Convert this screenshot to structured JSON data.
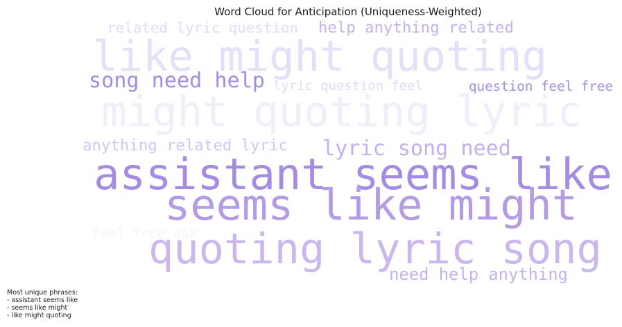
{
  "chart_data": {
    "type": "wordcloud",
    "title": "Word Cloud for Anticipation (Uniqueness-Weighted)",
    "words": [
      {
        "text": "assistant seems like",
        "weight": 1.0,
        "color": "#a58ce3"
      },
      {
        "text": "seems like might",
        "weight": 0.93,
        "color": "#b39be6"
      },
      {
        "text": "quoting lyric song",
        "weight": 0.9,
        "color": "#c9b7ee"
      },
      {
        "text": "might quoting lyric",
        "weight": 0.85,
        "color": "#f1eefa"
      },
      {
        "text": "like might quoting",
        "weight": 0.82,
        "color": "#e6dff8"
      },
      {
        "text": "song need help",
        "weight": 0.45,
        "color": "#a58ce3"
      },
      {
        "text": "lyric song need",
        "weight": 0.4,
        "color": "#c2b1ec"
      },
      {
        "text": "help anything related",
        "weight": 0.37,
        "color": "#c4b3ed"
      },
      {
        "text": "need help anything",
        "weight": 0.36,
        "color": "#c4b3ed"
      },
      {
        "text": "anything related lyric",
        "weight": 0.32,
        "color": "#d2c5f1"
      },
      {
        "text": "question feel free",
        "weight": 0.3,
        "color": "#a58ce3"
      },
      {
        "text": "related lyric question",
        "weight": 0.3,
        "color": "#e3dbf7"
      },
      {
        "text": "lyric question feel",
        "weight": 0.28,
        "color": "#e3dbf7"
      },
      {
        "text": "feel free ask",
        "weight": 0.27,
        "color": "#f5f2fb"
      }
    ],
    "annotation": {
      "heading": "Most unique phrases:",
      "lines": [
        "- assistant seems like",
        "- seems like might",
        "- like might quoting"
      ]
    }
  }
}
